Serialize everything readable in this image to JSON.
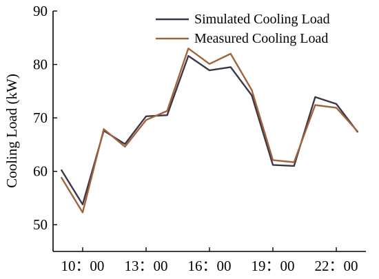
{
  "chart_data": {
    "type": "line",
    "xlabel": "",
    "ylabel": "Cooling Load (kW)",
    "ylim": [
      45,
      90
    ],
    "yticks": [
      50,
      60,
      70,
      80,
      90
    ],
    "x": [
      9,
      10,
      11,
      12,
      13,
      14,
      15,
      16,
      17,
      18,
      19,
      20,
      21,
      22,
      23
    ],
    "xlim": [
      8.6,
      23.4
    ],
    "xticks": [
      10,
      13,
      16,
      19,
      22
    ],
    "xtick_labels": [
      "10：00",
      "13：00",
      "16：00",
      "19：00",
      "22：00"
    ],
    "series": [
      {
        "name": "Simulated Cooling Load",
        "color": "#3d3548",
        "values": [
          60.2,
          53.8,
          67.6,
          65.1,
          70.3,
          70.5,
          81.6,
          78.9,
          79.5,
          74.2,
          61.2,
          61.0,
          73.9,
          72.6,
          67.4
        ]
      },
      {
        "name": "Measured Cooling Load",
        "color": "#a0643c",
        "values": [
          58.8,
          52.3,
          67.9,
          64.6,
          69.6,
          71.3,
          83.0,
          80.1,
          82.0,
          75.2,
          62.1,
          61.7,
          72.4,
          71.9,
          67.5
        ]
      }
    ],
    "legend_position": "top-right",
    "grid": false
  }
}
